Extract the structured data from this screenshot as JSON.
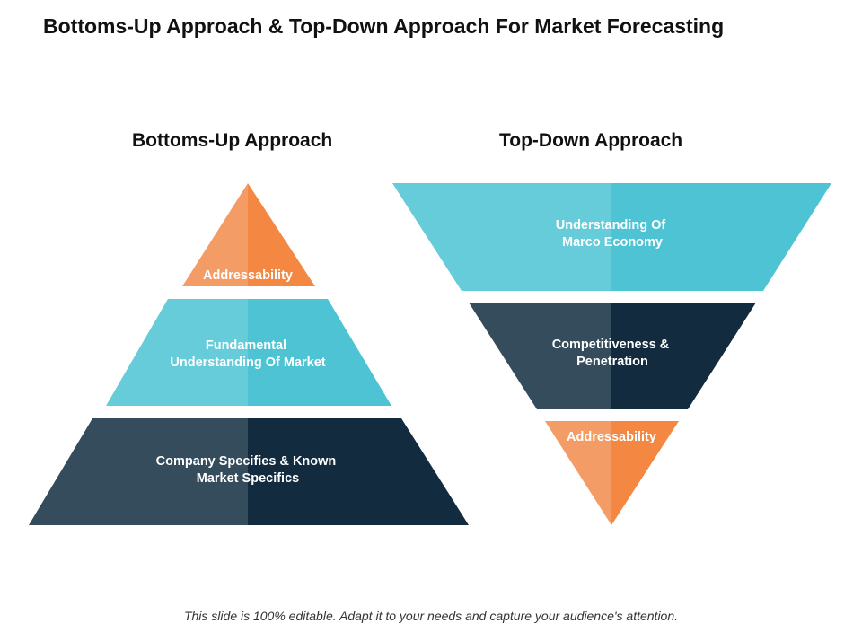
{
  "title": "Bottoms-Up Approach & Top-Down Approach For Market Forecasting",
  "bottoms_up": {
    "heading": "Bottoms-Up Approach",
    "levels": [
      {
        "lines": [
          "Addressability"
        ],
        "colors": {
          "left": "#F49C66",
          "right": "#F48843"
        }
      },
      {
        "lines": [
          "Fundamental",
          "Understanding Of Market"
        ],
        "colors": {
          "left": "#66CCDA",
          "right": "#4EC3D3"
        }
      },
      {
        "lines": [
          "Company Specifies & Known",
          "Market Specifics"
        ],
        "colors": {
          "left": "#344C5B",
          "right": "#132B3E"
        }
      }
    ]
  },
  "top_down": {
    "heading": "Top-Down Approach",
    "levels": [
      {
        "lines": [
          "Understanding Of",
          "Marco Economy"
        ],
        "colors": {
          "left": "#66CCDA",
          "right": "#4EC3D3"
        }
      },
      {
        "lines": [
          "Competitiveness &",
          "Penetration"
        ],
        "colors": {
          "left": "#344C5B",
          "right": "#132B3E"
        }
      },
      {
        "lines": [
          "Addressability"
        ],
        "colors": {
          "left": "#F49C66",
          "right": "#F48843"
        }
      }
    ]
  },
  "footer": "This slide is 100% editable.  Adapt it to your needs and capture your audience's attention."
}
